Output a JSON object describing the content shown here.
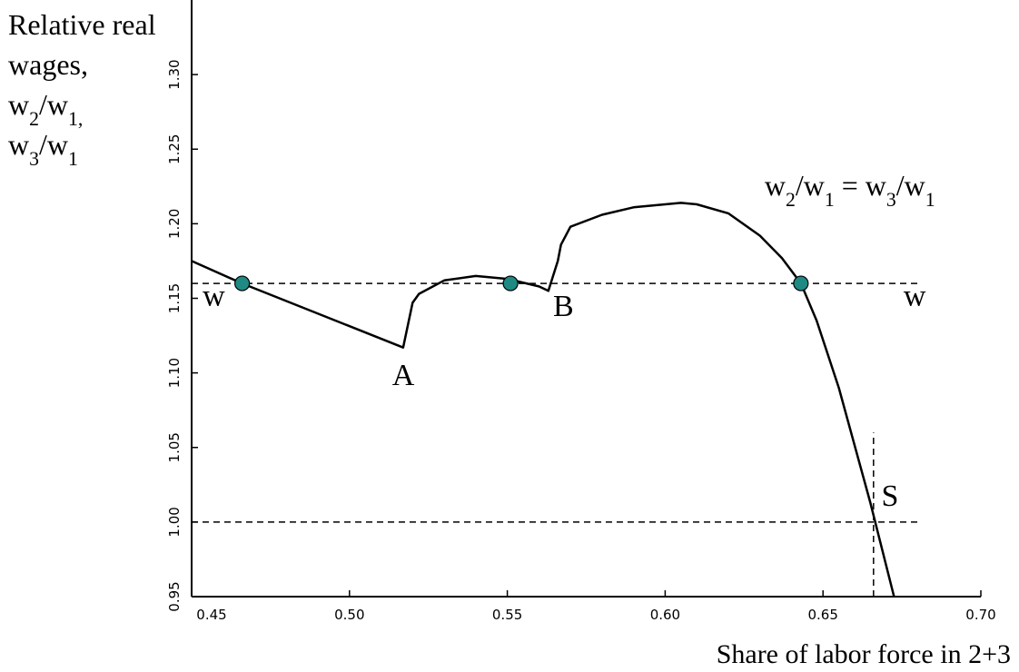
{
  "chart_data": {
    "type": "line",
    "ylabel_lines": [
      "Relative real",
      "wages,"
    ],
    "ylabel_math": [
      {
        "parts": [
          [
            "w",
            ""
          ],
          [
            "2",
            "sub"
          ],
          [
            "/w",
            ""
          ],
          [
            "1,",
            "sub"
          ]
        ]
      },
      {
        "parts": [
          [
            "w",
            ""
          ],
          [
            "3",
            "sub"
          ],
          [
            "/w",
            ""
          ],
          [
            "1",
            "sub"
          ]
        ]
      }
    ],
    "xlabel": "Share of labor force in 2+3",
    "xlim": [
      0.45,
      0.7
    ],
    "ylim": [
      0.95,
      1.35
    ],
    "x_ticks": [
      0.45,
      0.5,
      0.55,
      0.6,
      0.65,
      0.7
    ],
    "x_tick_labels": [
      "0.45",
      "0.50",
      "0.55",
      "0.60",
      "0.65",
      "0.70"
    ],
    "y_ticks": [
      0.95,
      1.0,
      1.05,
      1.1,
      1.15,
      1.2,
      1.25,
      1.3
    ],
    "y_tick_labels": [
      "0.95",
      "1.00",
      "1.05",
      "1.10",
      "1.15",
      "1.20",
      "1.25",
      "1.30"
    ],
    "grid": false,
    "series": [
      {
        "name": "",
        "style": "solid",
        "x": [
          0.45,
          0.466,
          0.517,
          0.52,
          0.522,
          0.53,
          0.54,
          0.55,
          0.56,
          0.563,
          0.566,
          0.567,
          0.57,
          0.58,
          0.59,
          0.6,
          0.605,
          0.61,
          0.62,
          0.63,
          0.637,
          0.643,
          0.648,
          0.655,
          0.665,
          0.6725
        ],
        "y": [
          1.175,
          1.16,
          1.117,
          1.147,
          1.153,
          1.162,
          1.165,
          1.163,
          1.158,
          1.155,
          1.175,
          1.186,
          1.198,
          1.206,
          1.211,
          1.213,
          1.214,
          1.213,
          1.207,
          1.192,
          1.177,
          1.16,
          1.135,
          1.09,
          1.013,
          0.95
        ]
      }
    ],
    "reference_lines": [
      {
        "axis": "y",
        "value": 1.16,
        "style": "dashed",
        "from_x": 0.45,
        "to_x": 0.68
      },
      {
        "axis": "y",
        "value": 1.0,
        "style": "dashed",
        "from_x": 0.45,
        "to_x": 0.68
      },
      {
        "axis": "x",
        "value": 0.666,
        "style": "dashed",
        "from_y": 0.95,
        "to_y": 1.06
      }
    ],
    "equilibrium_points": {
      "x": [
        0.466,
        0.551,
        0.643
      ],
      "y": [
        1.16,
        1.16,
        1.16
      ],
      "color": "#1f8a84"
    },
    "annotations": [
      {
        "text": "w",
        "x": 0.4535,
        "y": 1.145
      },
      {
        "text": "w",
        "x": 0.6755,
        "y": 1.145
      },
      {
        "text": "A",
        "x": 0.5135,
        "y": 1.092
      },
      {
        "text": "B",
        "x": 0.5645,
        "y": 1.138
      },
      {
        "text": "S",
        "x": 0.6685,
        "y": 1.011
      }
    ],
    "curve_label": {
      "x": 0.6315,
      "y": 1.219,
      "parts": [
        [
          "w",
          ""
        ],
        [
          "2",
          "sub"
        ],
        [
          "/w",
          ""
        ],
        [
          "1",
          "sub"
        ],
        [
          " = w",
          ""
        ],
        [
          "3",
          "sub"
        ],
        [
          "/w",
          ""
        ],
        [
          "1",
          "sub"
        ]
      ]
    },
    "colors": {
      "line": "#000000",
      "marker": "#1f8a84"
    }
  }
}
